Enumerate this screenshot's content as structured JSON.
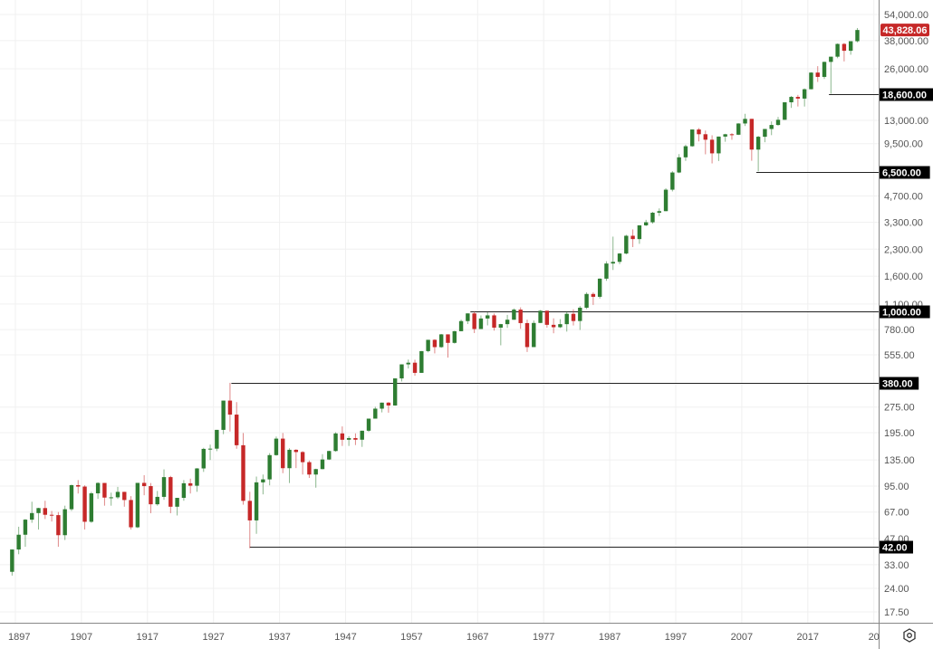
{
  "chart_data": {
    "type": "candlestick",
    "title": "",
    "scale": "log",
    "grid": true,
    "ylim": [
      17.5,
      54000
    ],
    "xlim": [
      1895.7,
      2029.5
    ],
    "x_ticks": [
      "1897",
      "1907",
      "1917",
      "1927",
      "1937",
      "1947",
      "1957",
      "1967",
      "1977",
      "1987",
      "1997",
      "2007",
      "2017",
      "20"
    ],
    "y_ticks": [
      "54,000.00",
      "38,000.00",
      "26,000.00",
      "13,000.00",
      "9,500.00",
      "4,700.00",
      "3,300.00",
      "2,300.00",
      "1,600.00",
      "1,100.00",
      "780.00",
      "555.00",
      "275.00",
      "195.00",
      "135.00",
      "95.00",
      "67.00",
      "47.00",
      "33.00",
      "24.00",
      "17.50"
    ],
    "last_price": {
      "label": "43,828.06",
      "value": 43828.06,
      "color": "#c62828"
    },
    "levels": [
      {
        "label": "18,600.00",
        "value": 18600,
        "from_year": 2020.2
      },
      {
        "label": "6,500.00",
        "value": 6500,
        "from_year": 2009.2
      },
      {
        "label": "1,000.00",
        "value": 1000,
        "from_year": 1965.9
      },
      {
        "label": "380.00",
        "value": 380,
        "from_year": 1929.7
      },
      {
        "label": "42.00",
        "value": 42,
        "from_year": 1932.5
      }
    ],
    "colors": {
      "up": "#2e7d32",
      "down": "#c62828",
      "level_line": "#222222",
      "grid": "#f0f0f0"
    },
    "series": [
      [
        1896,
        40.5,
        28.5,
        40.5
      ],
      [
        1897,
        49.4,
        38,
        55
      ],
      [
        1898,
        60.5,
        42,
        61
      ],
      [
        1899,
        66.1,
        58,
        77
      ],
      [
        1900,
        70.7,
        53,
        71
      ],
      [
        1901,
        64.6,
        61,
        78
      ],
      [
        1902,
        64.3,
        59,
        68
      ],
      [
        1903,
        49.1,
        42,
        67
      ],
      [
        1904,
        69.6,
        46,
        73
      ],
      [
        1905,
        96.2,
        68,
        97
      ],
      [
        1906,
        94.4,
        86,
        103
      ],
      [
        1907,
        58.8,
        53,
        96
      ],
      [
        1908,
        86.2,
        58,
        88
      ],
      [
        1909,
        99.1,
        80,
        100
      ],
      [
        1910,
        81.4,
        73,
        98
      ],
      [
        1911,
        81.7,
        73,
        87
      ],
      [
        1912,
        87.9,
        80,
        94
      ],
      [
        1913,
        78.8,
        72,
        88
      ],
      [
        1914,
        54.6,
        53,
        83
      ],
      [
        1915,
        99.2,
        54,
        99
      ],
      [
        1916,
        95.0,
        84,
        110
      ],
      [
        1917,
        74.4,
        66,
        99
      ],
      [
        1918,
        82.2,
        73,
        89
      ],
      [
        1919,
        107.2,
        79,
        119
      ],
      [
        1920,
        72.0,
        66,
        109
      ],
      [
        1921,
        81.1,
        64,
        81
      ],
      [
        1922,
        98.7,
        78,
        103
      ],
      [
        1923,
        95.5,
        86,
        105
      ],
      [
        1924,
        120.5,
        88,
        121
      ],
      [
        1925,
        156.7,
        115,
        159
      ],
      [
        1926,
        157.2,
        135,
        166
      ],
      [
        1927,
        202.4,
        152,
        202
      ],
      [
        1928,
        300.0,
        191,
        300
      ],
      [
        1929,
        248.5,
        198,
        381
      ],
      [
        1930,
        164.6,
        157,
        294
      ],
      [
        1931,
        77.9,
        74,
        194
      ],
      [
        1932,
        59.9,
        41.2,
        88
      ],
      [
        1933,
        99.9,
        50,
        108
      ],
      [
        1934,
        104.0,
        85,
        111
      ],
      [
        1935,
        144.1,
        96,
        148
      ],
      [
        1936,
        179.9,
        143,
        185
      ],
      [
        1937,
        120.9,
        113,
        194
      ],
      [
        1938,
        154.8,
        99,
        158
      ],
      [
        1939,
        150.2,
        121,
        156
      ],
      [
        1940,
        131.1,
        111,
        152
      ],
      [
        1941,
        111.0,
        106,
        134
      ],
      [
        1942,
        119.4,
        93,
        120
      ],
      [
        1943,
        135.9,
        119,
        146
      ],
      [
        1944,
        152.3,
        135,
        153
      ],
      [
        1945,
        192.9,
        151,
        196
      ],
      [
        1946,
        177.2,
        163,
        212
      ],
      [
        1947,
        181.2,
        163,
        186
      ],
      [
        1948,
        177.3,
        165,
        193
      ],
      [
        1949,
        200.1,
        161,
        200
      ],
      [
        1950,
        235.4,
        197,
        235
      ],
      [
        1951,
        269.2,
        239,
        276
      ],
      [
        1952,
        291.9,
        256,
        292
      ],
      [
        1953,
        280.9,
        255,
        294
      ],
      [
        1954,
        404.4,
        280,
        404
      ],
      [
        1955,
        488.4,
        388,
        488
      ],
      [
        1956,
        499.5,
        462,
        521
      ],
      [
        1957,
        435.7,
        419,
        520
      ],
      [
        1958,
        583.7,
        436,
        584
      ],
      [
        1959,
        679.4,
        574,
        679
      ],
      [
        1960,
        615.9,
        566,
        685
      ],
      [
        1961,
        731.1,
        610,
        735
      ],
      [
        1962,
        652.1,
        535,
        726
      ],
      [
        1963,
        763.0,
        646,
        767
      ],
      [
        1964,
        874.1,
        766,
        891
      ],
      [
        1965,
        969.3,
        840,
        969
      ],
      [
        1966,
        785.7,
        744,
        995
      ],
      [
        1967,
        905.1,
        786,
        943
      ],
      [
        1968,
        943.8,
        825,
        985
      ],
      [
        1969,
        800.4,
        769,
        968
      ],
      [
        1970,
        838.9,
        631,
        842
      ],
      [
        1971,
        890.2,
        798,
        950
      ],
      [
        1972,
        1020.0,
        889,
        1036
      ],
      [
        1973,
        850.9,
        788,
        1051
      ],
      [
        1974,
        616.2,
        577,
        891
      ],
      [
        1975,
        852.4,
        632,
        881
      ],
      [
        1976,
        1004.7,
        858,
        1014
      ],
      [
        1977,
        831.2,
        800,
        999
      ],
      [
        1978,
        805.0,
        742,
        907
      ],
      [
        1979,
        838.7,
        796,
        897
      ],
      [
        1980,
        964.0,
        759,
        1000
      ],
      [
        1981,
        875.0,
        824,
        1024
      ],
      [
        1982,
        1046.5,
        776,
        1070
      ],
      [
        1983,
        1258.6,
        1027,
        1287
      ],
      [
        1984,
        1211.6,
        1086,
        1286
      ],
      [
        1985,
        1546.7,
        1184,
        1553
      ],
      [
        1986,
        1896.0,
        1502,
        1955
      ],
      [
        1987,
        1938.8,
        1738,
        2722
      ],
      [
        1988,
        2168.6,
        1879,
        2183
      ],
      [
        1989,
        2753.2,
        2144,
        2791
      ],
      [
        1990,
        2633.7,
        2365,
        2999
      ],
      [
        1991,
        3168.8,
        2470,
        3168
      ],
      [
        1992,
        3301.1,
        3136,
        3413
      ],
      [
        1993,
        3754.1,
        3241,
        3794
      ],
      [
        1994,
        3834.4,
        3593,
        3978
      ],
      [
        1995,
        5117.1,
        3832,
        5216
      ],
      [
        1996,
        6448.3,
        5000,
        6560
      ],
      [
        1997,
        7908.3,
        6391,
        8259
      ],
      [
        1998,
        9181.4,
        7539,
        9374
      ],
      [
        1999,
        11497.1,
        9120,
        11497
      ],
      [
        2000,
        10788.0,
        9796,
        11723
      ],
      [
        2001,
        10021.5,
        8236,
        11337
      ],
      [
        2002,
        8341.6,
        7286,
        10635
      ],
      [
        2003,
        10453.9,
        7524,
        10454
      ],
      [
        2004,
        10783.0,
        9750,
        10854
      ],
      [
        2005,
        10717.5,
        10012,
        10940
      ],
      [
        2006,
        12463.2,
        10667,
        12510
      ],
      [
        2007,
        13264.8,
        12050,
        14198
      ],
      [
        2008,
        8776.4,
        7552,
        13058
      ],
      [
        2009,
        10428.1,
        6547,
        10548
      ],
      [
        2010,
        11577.5,
        9686,
        11585
      ],
      [
        2011,
        12217.6,
        10655,
        12810
      ],
      [
        2012,
        13104.1,
        12101,
        13610
      ],
      [
        2013,
        16576.7,
        13104,
        16577
      ],
      [
        2014,
        17823.1,
        15373,
        18053
      ],
      [
        2015,
        17425.0,
        15666,
        18312
      ],
      [
        2016,
        19762.6,
        15660,
        19975
      ],
      [
        2017,
        24719.2,
        19732,
        24838
      ],
      [
        2018,
        23327.5,
        21792,
        26951
      ],
      [
        2019,
        28538.4,
        22686,
        28645
      ],
      [
        2020,
        30606.5,
        18592,
        30606
      ],
      [
        2021,
        36338.3,
        29982,
        36565
      ],
      [
        2022,
        33147.3,
        28725,
        36800
      ],
      [
        2023,
        37689.5,
        31430,
        37710
      ],
      [
        2024,
        43828.06,
        37122,
        45000
      ]
    ]
  }
}
